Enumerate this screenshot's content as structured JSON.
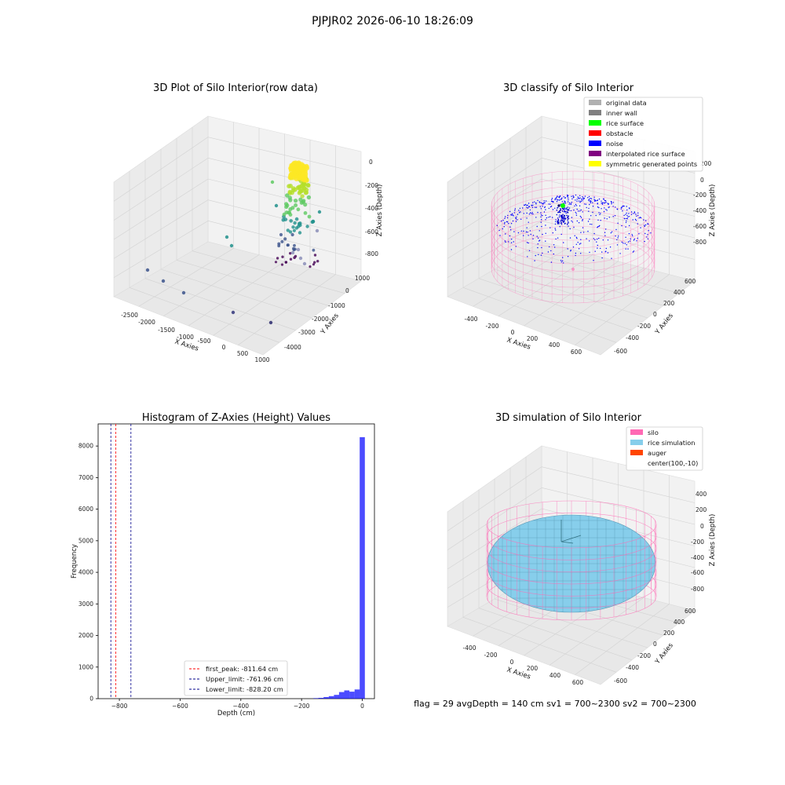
{
  "figure": {
    "suptitle": "PJPJR02 2026-06-10 18:26:09",
    "footer": "flag = 29  avgDepth = 140 cm  sv1 = 700~2300  sv2 = 700~2300"
  },
  "colors": {
    "pane": "#f2f2f2",
    "grid": "#d0d0d0",
    "pink": "#ff69b4",
    "rice": "#87ceeb",
    "hist": "#0000ff",
    "peak_line": "#ff0000",
    "limit_line": "#00008b"
  },
  "chart_data": [
    {
      "id": "raw",
      "type": "scatter",
      "title": "3D Plot of Silo Interior(row data)",
      "xlabel": "X Axies",
      "ylabel": "Y Axies",
      "zlabel": "Z Axies (Depth)",
      "x_ticks": [
        "-2500",
        "-2000",
        "-1500",
        "-1000",
        "-500",
        "0",
        "500",
        "1000"
      ],
      "y_ticks": [
        "1000",
        "0",
        "-1000",
        "-2000",
        "-3000",
        "-4000"
      ],
      "z_ticks": [
        "0",
        "-200",
        "-400",
        "-600",
        "-800"
      ],
      "colormap": "viridis"
    },
    {
      "id": "classify",
      "type": "scatter",
      "title": "3D classify of Silo Interior",
      "xlabel": "X Axies",
      "ylabel": "Y Axies",
      "zlabel": "Z Axies (Depth)",
      "x_ticks": [
        "-400",
        "-200",
        "0",
        "200",
        "400",
        "600"
      ],
      "y_ticks": [
        "600",
        "400",
        "200",
        "0",
        "-200",
        "-400",
        "-600"
      ],
      "z_ticks": [
        "200",
        "0",
        "-200",
        "-400",
        "-600",
        "-800"
      ],
      "legend": [
        {
          "label": "original data",
          "color": "#b0b0b0"
        },
        {
          "label": "inner wall",
          "color": "#808080"
        },
        {
          "label": "rice surface",
          "color": "#00ff00"
        },
        {
          "label": "obstacle",
          "color": "#ff0000"
        },
        {
          "label": "noise",
          "color": "#0000ff"
        },
        {
          "label": "interpolated rice surface",
          "color": "#800080"
        },
        {
          "label": "symmetric generated points",
          "color": "#ffff00"
        }
      ]
    },
    {
      "id": "histogram",
      "type": "bar",
      "title": "Histogram of Z-Axies (Height) Values",
      "xlabel": "Depth (cm)",
      "ylabel": "Frequency",
      "xlim": [
        -870,
        40
      ],
      "ylim": [
        0,
        8700
      ],
      "x_ticks": [
        -800,
        -600,
        -400,
        -200,
        0
      ],
      "x_tick_labels": [
        "−800",
        "−600",
        "−400",
        "−200",
        "0"
      ],
      "y_ticks": [
        0,
        1000,
        2000,
        3000,
        4000,
        5000,
        6000,
        7000,
        8000
      ],
      "bin_width": 17,
      "bins": [
        {
          "x": -153,
          "v": 15
        },
        {
          "x": -136,
          "v": 25
        },
        {
          "x": -119,
          "v": 50
        },
        {
          "x": -102,
          "v": 80
        },
        {
          "x": -85,
          "v": 120
        },
        {
          "x": -68,
          "v": 210
        },
        {
          "x": -51,
          "v": 260
        },
        {
          "x": -34,
          "v": 220
        },
        {
          "x": -17,
          "v": 290
        },
        {
          "x": 0,
          "v": 8280
        }
      ],
      "vlines": [
        {
          "x": -811.64,
          "label": "first_peak: -811.64 cm",
          "kind": "peak"
        },
        {
          "x": -761.96,
          "label": "Upper_limit: -761.96 cm",
          "kind": "limit"
        },
        {
          "x": -828.2,
          "label": "Lower_limit: -828.20 cm",
          "kind": "limit"
        }
      ],
      "legend_position": "lower-center"
    },
    {
      "id": "simulation",
      "type": "scatter",
      "title": "3D simulation of Silo Interior",
      "xlabel": "X Axies",
      "ylabel": "Y Axies",
      "zlabel": "Z Axies (Depth)",
      "x_ticks": [
        "-400",
        "-200",
        "0",
        "200",
        "400",
        "600"
      ],
      "y_ticks": [
        "600",
        "400",
        "200",
        "0",
        "-200",
        "-400",
        "-600"
      ],
      "z_ticks": [
        "400",
        "200",
        "0",
        "-200",
        "-400",
        "-600",
        "-800"
      ],
      "legend": [
        {
          "label": "silo",
          "color": "#ff69b4"
        },
        {
          "label": "rice simulation",
          "color": "#87ceeb"
        },
        {
          "label": "auger",
          "color": "#ff4500"
        },
        {
          "label": "center(100,-10)",
          "color": ""
        }
      ]
    }
  ]
}
